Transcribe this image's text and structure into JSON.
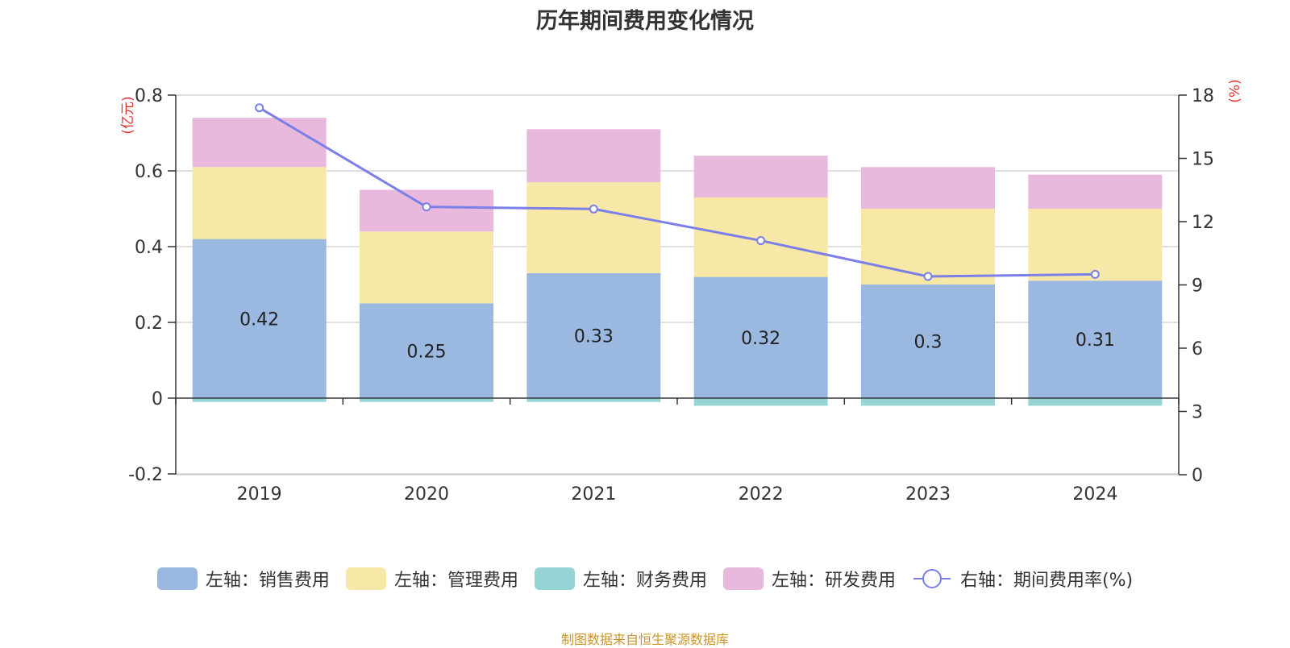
{
  "title": "历年期间费用变化情况",
  "source": "制图数据来自恒生聚源数据库",
  "chart_data": {
    "type": "bar",
    "stacked": true,
    "title": "历年期间费用变化情况",
    "categories": [
      "2019",
      "2020",
      "2021",
      "2022",
      "2023",
      "2024"
    ],
    "left_axis": {
      "unit_label": "(亿元)",
      "range": [
        -0.2,
        0.8
      ],
      "ticks": [
        -0.2,
        0,
        0.2,
        0.4,
        0.6,
        0.8
      ],
      "tick_labels": [
        "-0.2",
        "0",
        "0.2",
        "0.4",
        "0.6",
        "0.8"
      ]
    },
    "right_axis": {
      "unit_label": "(%)",
      "range": [
        0,
        18
      ],
      "ticks": [
        0,
        3,
        6,
        9,
        12,
        15,
        18
      ],
      "tick_labels": [
        "0",
        "3",
        "6",
        "9",
        "12",
        "15",
        "18"
      ]
    },
    "series": [
      {
        "name": "左轴：销售费用",
        "kind": "bar",
        "axis": "left",
        "color": "#9bb8e1",
        "values": [
          0.42,
          0.25,
          0.33,
          0.32,
          0.3,
          0.31
        ],
        "labels": [
          "0.42",
          "0.25",
          "0.33",
          "0.32",
          "0.3",
          "0.31"
        ]
      },
      {
        "name": "左轴：管理费用",
        "kind": "bar",
        "axis": "left",
        "color": "#f8e8a8",
        "values": [
          0.19,
          0.19,
          0.24,
          0.21,
          0.2,
          0.19
        ]
      },
      {
        "name": "左轴：财务费用",
        "kind": "bar",
        "axis": "left",
        "color": "#96d4d6",
        "values": [
          -0.01,
          -0.01,
          -0.01,
          -0.02,
          -0.02,
          -0.02
        ]
      },
      {
        "name": "左轴：研发费用",
        "kind": "bar",
        "axis": "left",
        "color": "#e8b9dc",
        "values": [
          0.13,
          0.11,
          0.14,
          0.11,
          0.11,
          0.09
        ]
      },
      {
        "name": "右轴：期间费用率(%)",
        "kind": "line",
        "axis": "right",
        "color": "#7b7fe8",
        "values": [
          17.4,
          12.7,
          12.6,
          11.1,
          9.4,
          9.5
        ]
      }
    ],
    "legend_position": "bottom"
  }
}
